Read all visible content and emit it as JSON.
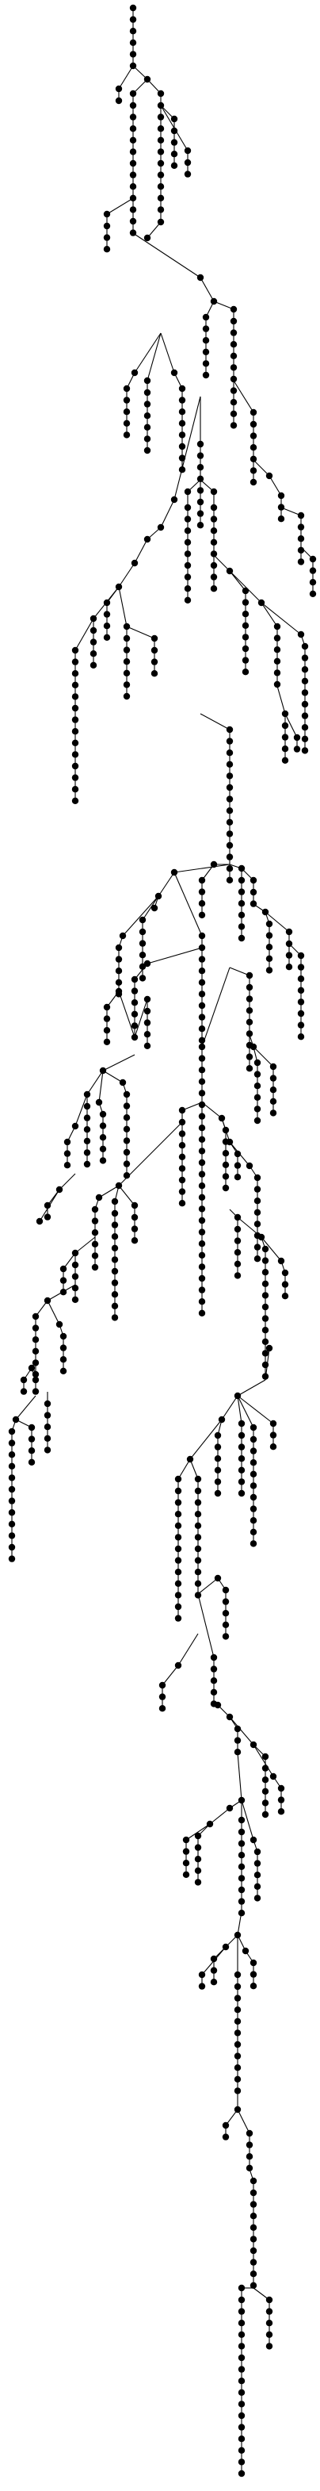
{
  "diagram": {
    "type": "tree",
    "colors": {
      "background": "#ffffff",
      "node": "#000000",
      "edge": "#000000"
    }
  }
}
